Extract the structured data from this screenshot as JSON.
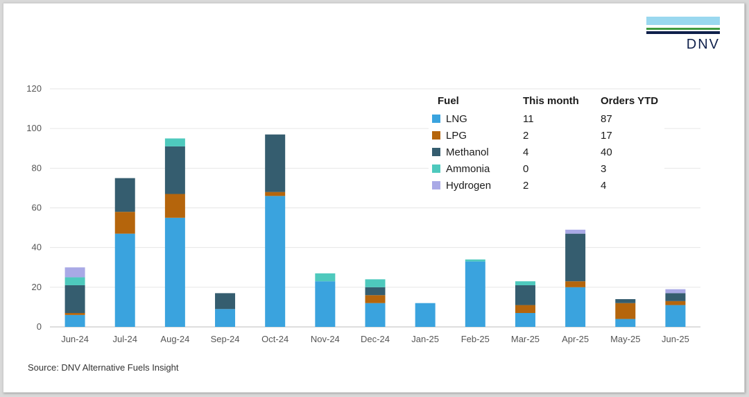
{
  "brand": {
    "name": "DNV"
  },
  "source": "Source: DNV Alternative Fuels Insight",
  "chart_data": {
    "type": "bar",
    "stacked": true,
    "categories": [
      "Jun-24",
      "Jul-24",
      "Aug-24",
      "Sep-24",
      "Oct-24",
      "Nov-24",
      "Dec-24",
      "Jan-25",
      "Feb-25",
      "Mar-25",
      "Apr-25",
      "May-25",
      "Jun-25"
    ],
    "series": [
      {
        "name": "LNG",
        "color": "#3aa3de",
        "values": [
          6,
          47,
          55,
          9,
          66,
          23,
          12,
          12,
          33,
          7,
          20,
          4,
          11
        ]
      },
      {
        "name": "LPG",
        "color": "#b5650c",
        "values": [
          1,
          11,
          12,
          0,
          2,
          0,
          4,
          0,
          0,
          4,
          3,
          8,
          2
        ]
      },
      {
        "name": "Methanol",
        "color": "#355d6f",
        "values": [
          14,
          17,
          24,
          8,
          29,
          0,
          4,
          0,
          0,
          10,
          24,
          2,
          4
        ]
      },
      {
        "name": "Ammonia",
        "color": "#4ec9bd",
        "values": [
          4,
          0,
          4,
          0,
          0,
          4,
          4,
          0,
          1,
          2,
          0,
          0,
          0
        ]
      },
      {
        "name": "Hydrogen",
        "color": "#a9a9e6",
        "values": [
          5,
          0,
          0,
          0,
          0,
          0,
          0,
          0,
          0,
          0,
          2,
          0,
          2
        ]
      }
    ],
    "ylim": [
      0,
      120
    ],
    "yticks": [
      0,
      20,
      40,
      60,
      80,
      100,
      120
    ],
    "grid": true,
    "legend_placement": "top-right",
    "legend_table": {
      "headers": [
        "Fuel",
        "This month",
        "Orders YTD"
      ],
      "rows": [
        {
          "fuel": "LNG",
          "this_month": "11",
          "ytd": "87"
        },
        {
          "fuel": "LPG",
          "this_month": "2",
          "ytd": "17"
        },
        {
          "fuel": "Methanol",
          "this_month": "4",
          "ytd": "40"
        },
        {
          "fuel": "Ammonia",
          "this_month": "0",
          "ytd": "3"
        },
        {
          "fuel": "Hydrogen",
          "this_month": "2",
          "ytd": "4"
        }
      ]
    }
  }
}
